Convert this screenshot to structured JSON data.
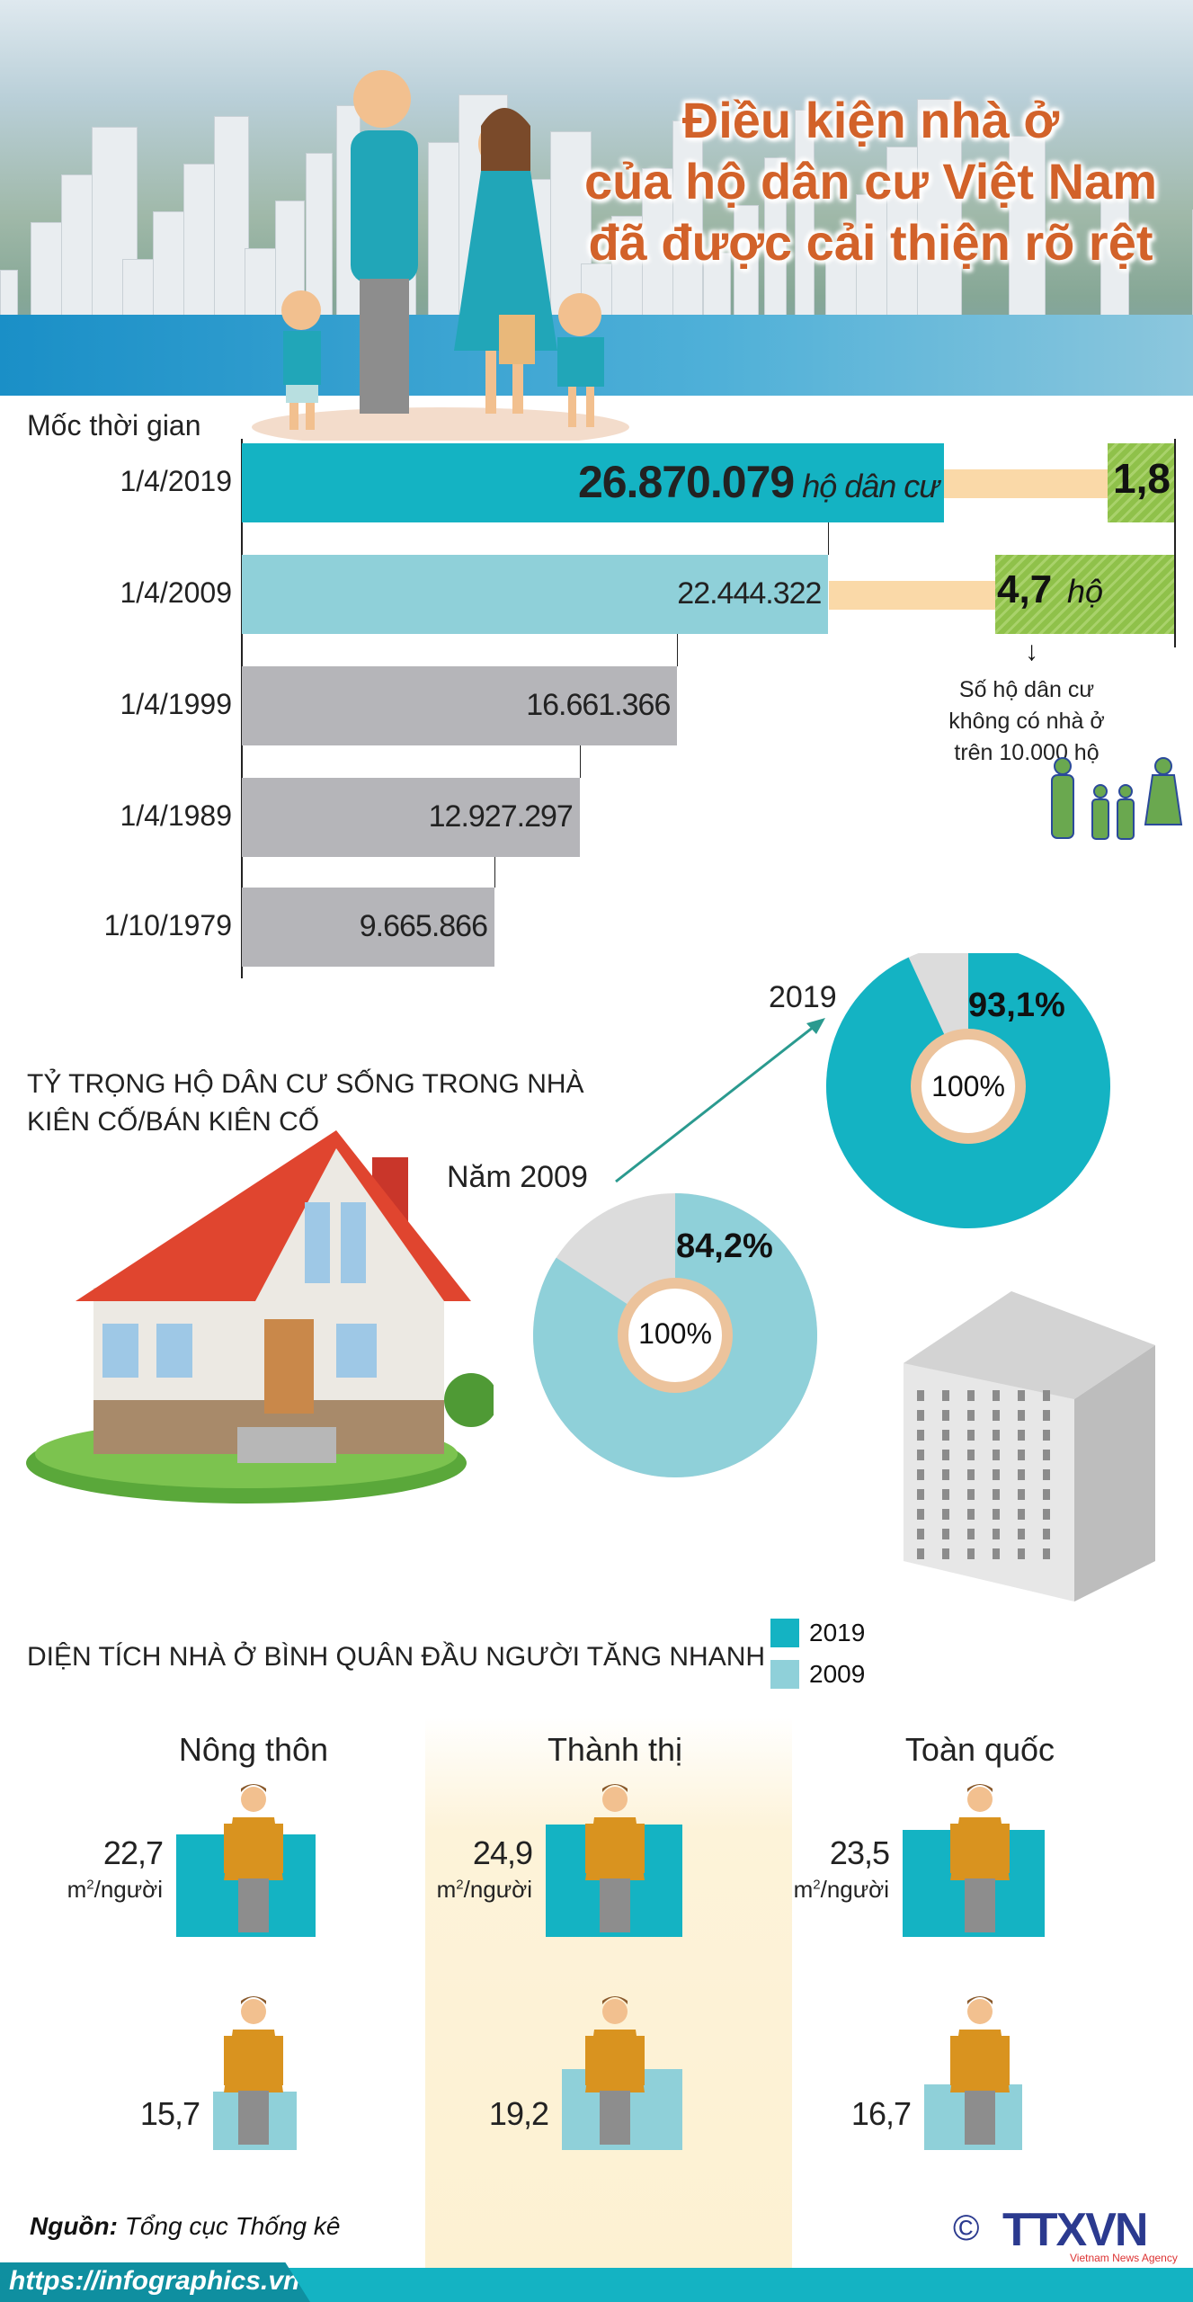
{
  "title": {
    "line1": "Điều kiện nhà ở",
    "line2": "của hộ dân cư Việt Nam",
    "line3": "đã được cải thiện rõ rệt"
  },
  "households": {
    "axis_label": "Mốc thời gian",
    "unit": "hộ dân cư",
    "no_house_unit": "hộ",
    "no_house_note": [
      "Số hộ dân cư",
      "không có nhà ở",
      "trên 10.000 hộ"
    ]
  },
  "pie_section": {
    "title_line1": "TỶ TRỌNG HỘ DÂN CƯ SỐNG TRONG NHÀ",
    "title_line2": "KIÊN CỐ/BÁN KIÊN CỐ",
    "label_2019": "2019",
    "label_2009": "Năm 2009",
    "center_label": "100%"
  },
  "area_section": {
    "title": "DIỆN TÍCH NHÀ Ở BÌNH QUÂN ĐẦU NGƯỜI TĂNG NHANH",
    "unit": "m²/người",
    "legend": [
      "2019",
      "2009"
    ]
  },
  "footer": {
    "source_label": "Nguồn:",
    "source": "Tổng cục Thống kê",
    "url": "https://infographics.vn",
    "logo": "TTXVN",
    "logo_sub": "Vietnam News Agency",
    "copyright": "©"
  },
  "colors": {
    "teal": "#14b3c3",
    "light_teal": "#8fd0d9",
    "gray": "#b5b5b9",
    "peach": "#fad9a8",
    "green": "#8fc14a",
    "title": "#d2622a",
    "pie_rest": "#dcdcdc"
  },
  "chart_data": [
    {
      "type": "bar",
      "orientation": "horizontal",
      "categories": [
        "1/4/2019",
        "1/4/2009",
        "1/4/1999",
        "1/4/1989",
        "1/10/1979"
      ],
      "values": [
        26870079,
        22444322,
        16661366,
        12927297,
        9665866
      ],
      "labels": [
        "26.870.079",
        "22.444.322",
        "16.661.366",
        "12.927.297",
        "9.665.866"
      ],
      "no_house_per_10000": [
        {
          "category": "1/4/2019",
          "value": "1,8"
        },
        {
          "category": "1/4/2009",
          "value": "4,7"
        }
      ]
    },
    {
      "type": "pie",
      "name": "2019",
      "values": [
        93.1,
        6.9
      ],
      "label": "93,1%"
    },
    {
      "type": "pie",
      "name": "Năm 2009",
      "values": [
        84.2,
        15.8
      ],
      "label": "84,2%"
    },
    {
      "type": "bar",
      "categories": [
        "Nông thôn",
        "Thành thị",
        "Toàn quốc"
      ],
      "series": [
        {
          "name": "2019",
          "values": [
            22.7,
            24.9,
            23.5
          ],
          "labels": [
            "22,7",
            "24,9",
            "23,5"
          ]
        },
        {
          "name": "2009",
          "values": [
            15.7,
            19.2,
            16.7
          ],
          "labels": [
            "15,7",
            "19,2",
            "16,7"
          ]
        }
      ]
    }
  ]
}
